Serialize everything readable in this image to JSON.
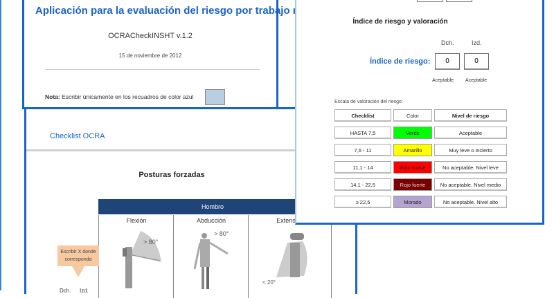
{
  "window_main": {
    "title": "Aplicación para la evaluación del riesgo por trabajo repetitivo",
    "version": "OCRACheckINSHT v.1.2",
    "date": "15 de noviembre de 2012",
    "note_label": "Nota:",
    "note_text": "Escribir únicamente en los recuadros de color azul",
    "input_color": "#b9cde4"
  },
  "window_checklist": {
    "subtitle": "Checklist OCRA",
    "section_title": "Posturas forzadas",
    "group_header": "Hombro",
    "group_color": "#1f4478",
    "columns": [
      "Flexión",
      "Abducción",
      "Extensión"
    ],
    "angle_labels": {
      "flexion": "> 80°",
      "abduccion": "> 80°",
      "extension": "< 20°"
    },
    "callout": "Escribir X donde corresponda",
    "side_labels": [
      "Dch.",
      "Izd."
    ]
  },
  "window_risk": {
    "heading": "Índice de riesgo y valoración",
    "col_labels": [
      "Dch.",
      "Izd."
    ],
    "index_label": "Índice de riesgo:",
    "values": [
      "0",
      "0"
    ],
    "ratings": [
      "Aceptable",
      "Aceptable"
    ],
    "scale_title": "Escala de valoración del riesgo:",
    "table_headers": [
      "Checklist",
      "Color",
      "Nivel de riesgo"
    ],
    "rows": [
      {
        "range": "HASTA 7,5",
        "color": "Verde",
        "hex": "#00ff00",
        "level": "Aceptable"
      },
      {
        "range": "7,6 - 11",
        "color": "Amarillo",
        "hex": "#ffff00",
        "level": "Muy leve o incierto"
      },
      {
        "range": "11,1 - 14",
        "color": "Rojo suave",
        "hex": "#ff0000",
        "level": "No aceptable. Nivel leve"
      },
      {
        "range": "14,1 - 22,5",
        "color": "Rojo fuerte",
        "hex": "#7a0000",
        "level": "No aceptable. Nivel medio"
      },
      {
        "range": "≥ 22,5",
        "color": "Morado",
        "hex": "#b4a4cf",
        "level": "No aceptable. Nivel alto"
      }
    ]
  }
}
